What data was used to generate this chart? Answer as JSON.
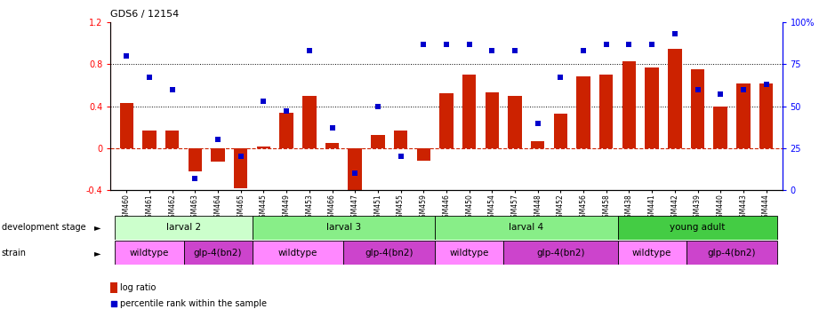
{
  "title": "GDS6 / 12154",
  "samples": [
    "GSM460",
    "GSM461",
    "GSM462",
    "GSM463",
    "GSM464",
    "GSM465",
    "GSM445",
    "GSM449",
    "GSM453",
    "GSM466",
    "GSM447",
    "GSM451",
    "GSM455",
    "GSM459",
    "GSM446",
    "GSM450",
    "GSM454",
    "GSM457",
    "GSM448",
    "GSM452",
    "GSM456",
    "GSM458",
    "GSM438",
    "GSM441",
    "GSM442",
    "GSM439",
    "GSM440",
    "GSM443",
    "GSM444"
  ],
  "log_ratio": [
    0.43,
    0.17,
    0.17,
    -0.22,
    -0.13,
    -0.38,
    0.02,
    0.34,
    0.5,
    0.05,
    -0.42,
    0.13,
    0.17,
    -0.12,
    0.52,
    0.7,
    0.53,
    0.5,
    0.07,
    0.33,
    0.68,
    0.7,
    0.83,
    0.77,
    0.95,
    0.75,
    0.4,
    0.62,
    0.62
  ],
  "percentile": [
    80,
    67,
    60,
    7,
    30,
    20,
    53,
    47,
    83,
    37,
    10,
    50,
    20,
    87,
    87,
    87,
    83,
    83,
    40,
    67,
    83,
    87,
    87,
    87,
    93,
    60,
    57,
    60,
    63
  ],
  "bar_color": "#cc2200",
  "dot_color": "#0000cc",
  "ylim_left": [
    -0.4,
    1.2
  ],
  "ylim_right": [
    0,
    100
  ],
  "yticks_left": [
    -0.4,
    0.0,
    0.4,
    0.8,
    1.2
  ],
  "yticks_right": [
    0,
    25,
    50,
    75,
    100
  ],
  "ytick_labels_left": [
    "-0.4",
    "0",
    "0.4",
    "0.8",
    "1.2"
  ],
  "ytick_labels_right": [
    "0",
    "25",
    "50",
    "75",
    "100%"
  ],
  "hlines": [
    0.4,
    0.8
  ],
  "dev_labels": [
    "larval 2",
    "larval 3",
    "larval 4",
    "young adult"
  ],
  "dev_starts": [
    0,
    6,
    14,
    22
  ],
  "dev_ends": [
    6,
    14,
    22,
    29
  ],
  "dev_colors": [
    "#ccffcc",
    "#88ee88",
    "#88ee88",
    "#44cc44"
  ],
  "strain_labels": [
    "wildtype",
    "glp-4(bn2)",
    "wildtype",
    "glp-4(bn2)",
    "wildtype",
    "glp-4(bn2)",
    "wildtype",
    "glp-4(bn2)"
  ],
  "strain_starts": [
    0,
    3,
    6,
    10,
    14,
    17,
    22,
    25
  ],
  "strain_ends": [
    3,
    6,
    10,
    14,
    17,
    22,
    25,
    29
  ],
  "strain_colors": [
    "#ff88ff",
    "#cc44cc",
    "#ff88ff",
    "#cc44cc",
    "#ff88ff",
    "#cc44cc",
    "#ff88ff",
    "#cc44cc"
  ],
  "legend_bar_label": "log ratio",
  "legend_dot_label": "percentile rank within the sample",
  "row_label_dev": "development stage",
  "row_label_strain": "strain"
}
